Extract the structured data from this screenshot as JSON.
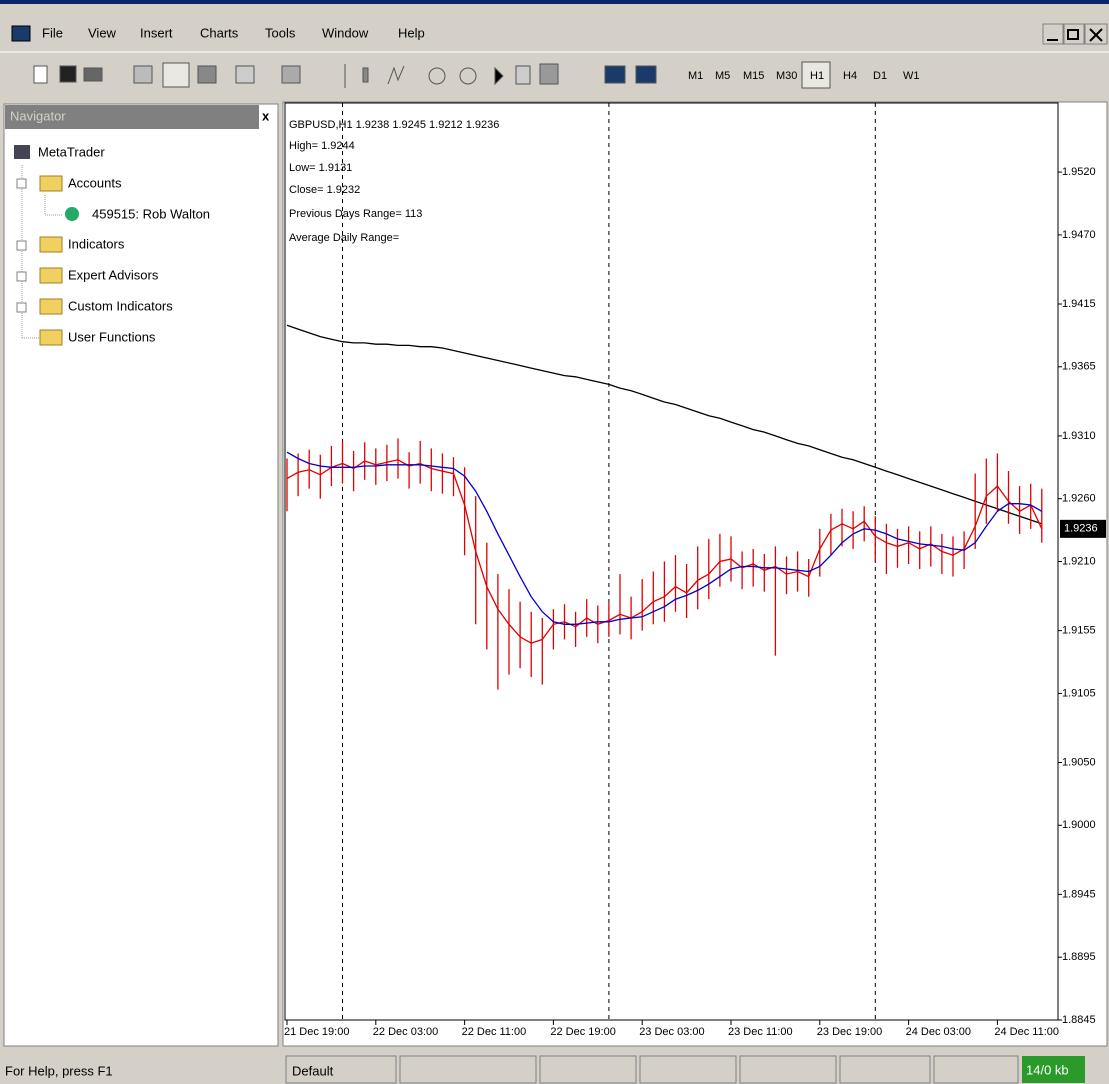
{
  "menu": [
    "File",
    "View",
    "Insert",
    "Charts",
    "Tools",
    "Window",
    "Help"
  ],
  "timeframes": [
    "M1",
    "M5",
    "M15",
    "M30",
    "H1",
    "H4",
    "D1",
    "W1"
  ],
  "navigator": {
    "title": "Navigator",
    "close": "x",
    "items": [
      "MetaTrader",
      "Accounts",
      "459515: Rob Walton",
      "Indicators",
      "Expert Advisors",
      "Custom Indicators",
      "User Functions"
    ]
  },
  "info": [
    "GBPUSD,H1  1.9238 1.9245 1.9212 1.9236",
    "High= 1.9244",
    "Low= 1.9131",
    "Close= 1.9232",
    "Previous Days Range= 113",
    "Average Daily Range="
  ],
  "status": {
    "help": "For Help, press F1",
    "profile": "Default",
    "traffic": "14/0 kb"
  },
  "chart_data": {
    "type": "ohlc",
    "categories": [
      "21 Dec 19:00",
      null,
      null,
      null,
      null,
      null,
      null,
      null,
      "22 Dec 03:00",
      null,
      null,
      null,
      null,
      null,
      null,
      null,
      "22 Dec 11:00",
      null,
      null,
      null,
      null,
      null,
      null,
      null,
      "22 Dec 19:00",
      null,
      null,
      null,
      null,
      null,
      null,
      null,
      "23 Dec 03:00",
      null,
      null,
      null,
      null,
      null,
      null,
      null,
      "23 Dec 11:00",
      null,
      null,
      null,
      null,
      null,
      null,
      null,
      "23 Dec 19:00",
      null,
      null,
      null,
      null,
      null,
      null,
      null,
      "24 Dec 03:00",
      null,
      null,
      null,
      null,
      null,
      null,
      null,
      "24 Dec 11:00",
      null,
      null,
      null,
      null
    ],
    "ylim": [
      1.8845,
      1.9575
    ],
    "yticks": [
      {
        "value": 1.952,
        "label": "1.9520"
      },
      {
        "value": 1.947,
        "label": "1.9470"
      },
      1.9415,
      1.9365,
      {
        "value": 1.931,
        "label": "1.9310"
      },
      {
        "value": 1.926,
        "label": "1.9260"
      },
      {
        "value": 1.921,
        "label": "1.9210"
      },
      1.9155,
      1.9105,
      {
        "value": 1.905,
        "label": "1.9050"
      },
      {
        "value": 1.9,
        "label": "1.9000"
      },
      1.8945,
      1.8895,
      1.8845
    ],
    "current_price": 1.9236,
    "bars": {
      "color": "#e00000",
      "high": [
        1.9292,
        1.9296,
        1.9299,
        1.9295,
        1.9302,
        1.9306,
        1.9298,
        1.9305,
        1.93,
        1.9303,
        1.9308,
        1.9297,
        1.9306,
        1.93,
        1.9296,
        1.9293,
        1.9285,
        1.9262,
        1.9225,
        1.92,
        1.9188,
        1.9178,
        1.917,
        1.9165,
        1.9172,
        1.9176,
        1.917,
        1.918,
        1.9175,
        1.9178,
        1.92,
        1.9182,
        1.9196,
        1.9202,
        1.921,
        1.9215,
        1.9208,
        1.9222,
        1.9228,
        1.9232,
        1.923,
        1.9218,
        1.922,
        1.9216,
        1.9222,
        1.9214,
        1.9218,
        1.9212,
        1.9236,
        1.9248,
        1.9252,
        1.925,
        1.9254,
        1.9246,
        1.924,
        1.9236,
        1.9238,
        1.9234,
        1.9238,
        1.9232,
        1.923,
        1.9234,
        1.928,
        1.9292,
        1.9296,
        1.9282,
        1.927,
        1.9272,
        1.9268
      ],
      "low": [
        1.925,
        1.9262,
        1.9268,
        1.926,
        1.927,
        1.9272,
        1.9266,
        1.9275,
        1.9271,
        1.9274,
        1.9276,
        1.9268,
        1.9272,
        1.9266,
        1.9264,
        1.9262,
        1.9215,
        1.916,
        1.914,
        1.9108,
        1.912,
        1.9125,
        1.9118,
        1.9112,
        1.914,
        1.9148,
        1.9142,
        1.915,
        1.9145,
        1.915,
        1.9152,
        1.9148,
        1.9155,
        1.916,
        1.9162,
        1.917,
        1.9165,
        1.9172,
        1.918,
        1.919,
        1.9194,
        1.9188,
        1.919,
        1.9186,
        1.9135,
        1.9184,
        1.9186,
        1.9182,
        1.9198,
        1.9215,
        1.9222,
        1.922,
        1.9226,
        1.921,
        1.92,
        1.9205,
        1.9208,
        1.9204,
        1.9206,
        1.92,
        1.9198,
        1.9204,
        1.922,
        1.924,
        1.925,
        1.924,
        1.9232,
        1.9236,
        1.9225
      ]
    },
    "series": [
      {
        "color": "#000000",
        "values": [
          1.9398,
          1.9395,
          1.9392,
          1.9389,
          1.9387,
          1.9385,
          1.9384,
          1.9384,
          1.9383,
          1.9383,
          1.9382,
          1.9382,
          1.9381,
          1.9381,
          1.938,
          1.9378,
          1.9376,
          1.9374,
          1.9372,
          1.937,
          1.9368,
          1.9366,
          1.9364,
          1.9362,
          1.936,
          1.9358,
          1.9357,
          1.9355,
          1.9353,
          1.9351,
          1.9348,
          1.9346,
          1.9343,
          1.934,
          1.9337,
          1.9335,
          1.9332,
          1.9329,
          1.9326,
          1.9324,
          1.9321,
          1.9318,
          1.9315,
          1.9313,
          1.931,
          1.9307,
          1.9304,
          1.9302,
          1.9299,
          1.9296,
          1.9293,
          1.9291,
          1.9288,
          1.9285,
          1.9282,
          1.9279,
          1.9276,
          1.9273,
          1.927,
          1.9267,
          1.9264,
          1.9261,
          1.9258,
          1.9255,
          1.9252,
          1.9249,
          1.9246,
          1.9243,
          1.924
        ]
      },
      {
        "color": "#e00000",
        "values": [
          1.9276,
          1.9281,
          1.9283,
          1.9279,
          1.9285,
          1.9288,
          1.9284,
          1.929,
          1.9287,
          1.9289,
          1.9291,
          1.9286,
          1.9288,
          1.9284,
          1.9282,
          1.928,
          1.9255,
          1.9218,
          1.919,
          1.9172,
          1.916,
          1.915,
          1.9145,
          1.9148,
          1.916,
          1.9162,
          1.9158,
          1.9165,
          1.916,
          1.9163,
          1.9168,
          1.9165,
          1.917,
          1.9178,
          1.9182,
          1.919,
          1.9185,
          1.9195,
          1.92,
          1.921,
          1.9212,
          1.9205,
          1.9208,
          1.9203,
          1.9206,
          1.92,
          1.9202,
          1.9198,
          1.922,
          1.9235,
          1.924,
          1.9236,
          1.9242,
          1.923,
          1.9225,
          1.9222,
          1.9225,
          1.922,
          1.9224,
          1.9218,
          1.9215,
          1.922,
          1.9238,
          1.9262,
          1.927,
          1.9258,
          1.925,
          1.9255,
          1.9236
        ]
      },
      {
        "color": "#0000cc",
        "values": [
          1.9297,
          1.9292,
          1.9288,
          1.9286,
          1.9285,
          1.9285,
          1.9285,
          1.9286,
          1.9286,
          1.9287,
          1.9287,
          1.9287,
          1.9287,
          1.9286,
          1.9285,
          1.9284,
          1.9278,
          1.9266,
          1.925,
          1.9232,
          1.9215,
          1.9198,
          1.9182,
          1.917,
          1.9162,
          1.916,
          1.916,
          1.9161,
          1.9162,
          1.9162,
          1.9164,
          1.9165,
          1.9166,
          1.917,
          1.9174,
          1.918,
          1.9183,
          1.9187,
          1.9192,
          1.9198,
          1.9204,
          1.9206,
          1.9206,
          1.9205,
          1.9205,
          1.9204,
          1.9203,
          1.9202,
          1.9206,
          1.9215,
          1.9225,
          1.9232,
          1.9236,
          1.9235,
          1.9232,
          1.9228,
          1.9226,
          1.9224,
          1.9223,
          1.9222,
          1.922,
          1.9219,
          1.9225,
          1.9238,
          1.925,
          1.9256,
          1.9256,
          1.9255,
          1.925
        ]
      }
    ]
  }
}
